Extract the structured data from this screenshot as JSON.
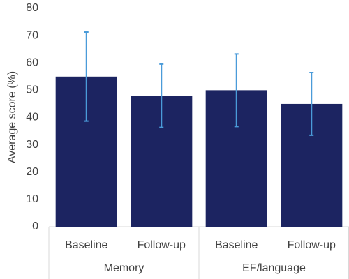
{
  "chart_data": {
    "type": "bar",
    "y_label": "Average score (%)",
    "groups": [
      {
        "name": "Memory",
        "categories": [
          "Baseline",
          "Follow-up"
        ],
        "values": [
          55,
          48
        ],
        "errors": [
          16.3,
          11.6
        ]
      },
      {
        "name": "EF/language",
        "categories": [
          "Baseline",
          "Follow-up"
        ],
        "values": [
          50,
          45
        ],
        "errors": [
          13.3,
          11.5
        ]
      }
    ],
    "color": "#1c2461",
    "error_color": "#4a9bd9",
    "ylim": [
      0,
      80
    ],
    "yticks": [
      0,
      10,
      20,
      30,
      40,
      50,
      60,
      70,
      80
    ],
    "grid": false
  }
}
